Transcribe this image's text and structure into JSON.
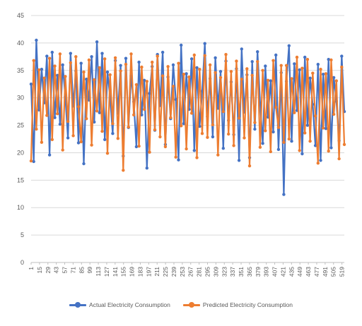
{
  "colors": {
    "actual": "#4472C4",
    "predicted": "#ED7D31",
    "grid": "#D9D9D9",
    "axis_text": "#595959"
  },
  "chart_data": {
    "type": "line",
    "title": "",
    "xlabel": "",
    "ylabel": "",
    "ylim": [
      0,
      45
    ],
    "yticks": [
      "0",
      "5",
      "10",
      "15",
      "20",
      "25",
      "30",
      "35",
      "40",
      "45"
    ],
    "x_range": [
      1,
      523
    ],
    "xtick_labels": [
      "1",
      "15",
      "29",
      "43",
      "57",
      "71",
      "85",
      "99",
      "113",
      "127",
      "141",
      "155",
      "169",
      "183",
      "197",
      "211",
      "225",
      "239",
      "253",
      "267",
      "281",
      "295",
      "309",
      "323",
      "337",
      "351",
      "365",
      "379",
      "393",
      "407",
      "421",
      "435",
      "449",
      "463",
      "477",
      "491",
      "505",
      "519"
    ],
    "grid": "horizontal",
    "legend_position": "bottom",
    "series": [
      {
        "name": "Actual Electricity Consumption",
        "color": "#4472C4",
        "values": [
          32.5,
          18.4,
          40.5,
          27.8,
          35.2,
          29.1,
          37.6,
          19.6,
          38.3,
          26.4,
          34.1,
          25.2,
          36.0,
          30.2,
          22.7,
          38.1,
          28.5,
          34.9,
          21.8,
          36.3,
          18.0,
          33.4,
          29.6,
          37.5,
          25.6,
          40.2,
          27.3,
          38.1,
          22.4,
          34.7,
          30.1,
          23.5,
          36.8,
          27.2,
          35.9,
          19.4,
          37.2,
          24.6,
          34.0,
          29.3,
          21.1,
          36.5,
          26.9,
          33.2,
          17.2,
          30.8,
          35.7,
          24.1,
          37.9,
          28.6,
          38.3,
          21.5,
          33.8,
          26.2,
          36.0,
          29.7,
          18.7,
          39.6,
          25.3,
          34.4,
          27.9,
          37.1,
          20.4,
          35.5,
          24.8,
          31.2,
          39.9,
          26.6,
          33.5,
          22.9,
          37.3,
          28.1,
          34.8,
          20.8,
          36.7,
          25.9,
          32.9,
          23.3,
          35.3,
          18.6,
          38.9,
          27.4,
          34.2,
          19.1,
          36.6,
          24.3,
          38.4,
          29.0,
          21.7,
          35.8,
          26.5,
          33.1,
          23.8,
          37.8,
          20.6,
          34.6,
          12.4,
          33.0,
          39.5,
          22.1,
          36.2,
          27.7,
          35.1,
          19.8,
          37.4,
          25.0,
          33.6,
          28.8,
          21.3,
          36.1,
          18.6,
          34.3,
          24.4,
          37.0,
          20.9,
          33.7,
          29.4,
          22.2,
          37.6,
          27.5
        ]
      },
      {
        "name": "Predicted Electricity Consumption",
        "color": "#ED7D31",
        "values": [
          18.5,
          36.8,
          24.3,
          35.1,
          21.9,
          33.6,
          26.8,
          37.2,
          22.4,
          35.8,
          27.1,
          38.0,
          20.5,
          33.9,
          25.7,
          36.4,
          23.1,
          37.5,
          28.4,
          22.0,
          34.7,
          26.2,
          36.9,
          21.4,
          33.3,
          27.6,
          35.5,
          23.9,
          37.1,
          19.9,
          34.2,
          25.3,
          37.3,
          22.6,
          34.9,
          16.8,
          36.1,
          24.7,
          38.0,
          26.9,
          32.4,
          21.2,
          35.6,
          27.9,
          33.0,
          20.1,
          36.5,
          24.2,
          37.6,
          22.9,
          34.0,
          21.1,
          35.7,
          26.4,
          32.1,
          19.2,
          36.3,
          24.9,
          34.3,
          20.7,
          33.8,
          27.2,
          37.8,
          19.1,
          35.2,
          23.5,
          37.7,
          22.8,
          36.0,
          25.1,
          34.6,
          19.6,
          33.7,
          27.5,
          37.9,
          23.4,
          34.8,
          21.3,
          36.7,
          26.3,
          33.4,
          22.7,
          35.3,
          17.6,
          34.1,
          25.5,
          36.6,
          21.0,
          35.0,
          24.0,
          33.2,
          20.2,
          36.8,
          28.3,
          24.6,
          35.9,
          21.9,
          35.9,
          22.5,
          33.5,
          27.3,
          37.4,
          20.4,
          35.4,
          23.6,
          37.0,
          22.1,
          34.5,
          26.7,
          18.1,
          35.2,
          24.5,
          34.4,
          20.3,
          36.9,
          27.0,
          33.1,
          18.9,
          35.6,
          21.5
        ]
      }
    ]
  }
}
